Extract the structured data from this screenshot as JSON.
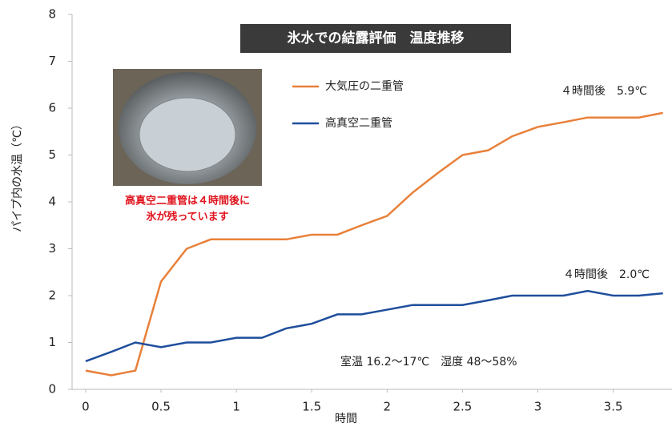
{
  "chart_data": {
    "type": "line",
    "title": "氷水での結露評価　温度推移",
    "x_label": "時間",
    "y_label": "パイプ内の水温（℃）",
    "x": [
      0,
      0.17,
      0.33,
      0.5,
      0.67,
      0.83,
      1,
      1.17,
      1.33,
      1.5,
      1.67,
      1.83,
      2,
      2.17,
      2.33,
      2.5,
      2.67,
      2.83,
      3,
      3.17,
      3.33,
      3.5,
      3.67,
      3.83
    ],
    "series": [
      {
        "name": "大気圧の二重管",
        "color": "#e8803a",
        "values": [
          0.4,
          0.3,
          0.4,
          2.3,
          3.0,
          3.2,
          3.2,
          3.2,
          3.2,
          3.3,
          3.3,
          3.5,
          3.7,
          4.2,
          4.6,
          5.0,
          5.1,
          5.4,
          5.6,
          5.7,
          5.8,
          5.8,
          5.8,
          5.9
        ]
      },
      {
        "name": "高真空二重管",
        "color": "#1f4e9c",
        "values": [
          0.6,
          0.8,
          1.0,
          0.9,
          1.0,
          1.0,
          1.1,
          1.1,
          1.3,
          1.4,
          1.6,
          1.6,
          1.7,
          1.8,
          1.8,
          1.8,
          1.9,
          2.0,
          2.0,
          2.0,
          2.1,
          2.0,
          2.0,
          2.05
        ]
      }
    ],
    "xlim": [
      -0.09,
      3.89
    ],
    "xticks": [
      0,
      0.5,
      1,
      1.5,
      2,
      2.5,
      3,
      3.5
    ],
    "ylim": [
      0,
      8
    ],
    "yticks": [
      0,
      1,
      2,
      3,
      4,
      5,
      6,
      7,
      8
    ],
    "annotations": [
      "高真空二重管は４時間後に",
      "氷が残っています",
      "４時間後　5.9℃",
      "４時間後　2.0℃",
      "室温 16.2～17℃　湿度 48～58%"
    ]
  }
}
